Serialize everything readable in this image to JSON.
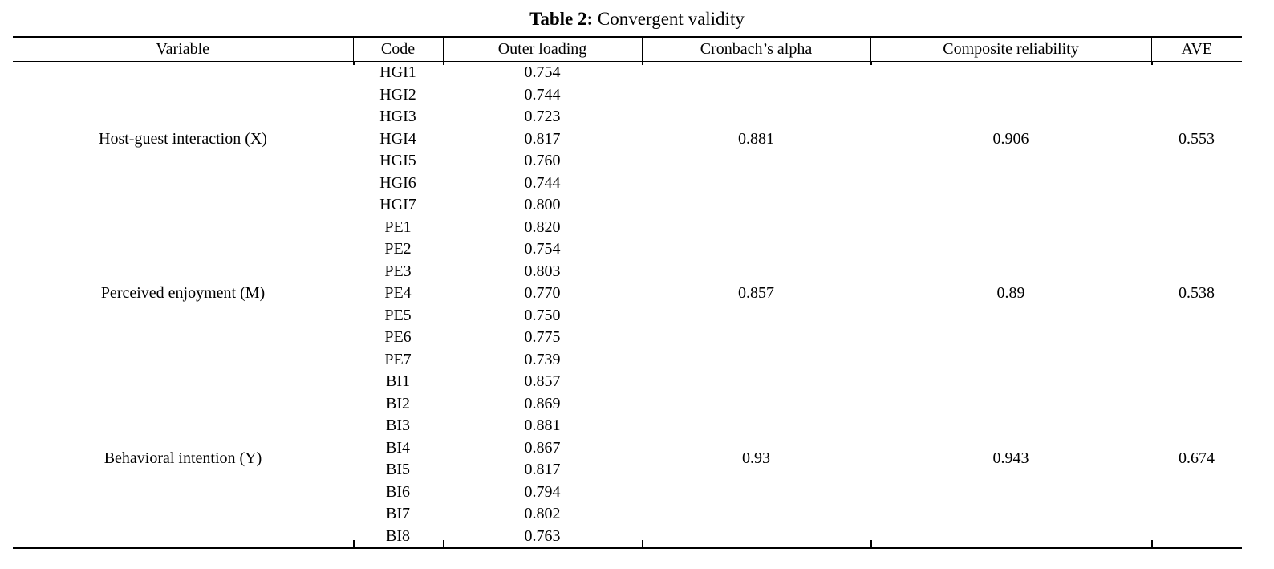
{
  "title": {
    "label": "Table 2:",
    "text": " Convergent validity"
  },
  "colors": {
    "text": "#000000",
    "rule": "#000000",
    "background": "#ffffff"
  },
  "table": {
    "headers": [
      "Variable",
      "Code",
      "Outer loading",
      "Cronbach’s alpha",
      "Composite reliability",
      "AVE"
    ],
    "groups": [
      {
        "variable": "Host-guest interaction (X)",
        "cronbach_alpha": "0.881",
        "composite_reliability": "0.906",
        "ave": "0.553",
        "items": [
          {
            "code": "HGI1",
            "loading": "0.754"
          },
          {
            "code": "HGI2",
            "loading": "0.744"
          },
          {
            "code": "HGI3",
            "loading": "0.723"
          },
          {
            "code": "HGI4",
            "loading": "0.817"
          },
          {
            "code": "HGI5",
            "loading": "0.760"
          },
          {
            "code": "HGI6",
            "loading": "0.744"
          },
          {
            "code": "HGI7",
            "loading": "0.800"
          }
        ]
      },
      {
        "variable": "Perceived enjoyment (M)",
        "cronbach_alpha": "0.857",
        "composite_reliability": "0.89",
        "ave": "0.538",
        "items": [
          {
            "code": "PE1",
            "loading": "0.820"
          },
          {
            "code": "PE2",
            "loading": "0.754"
          },
          {
            "code": "PE3",
            "loading": "0.803"
          },
          {
            "code": "PE4",
            "loading": "0.770"
          },
          {
            "code": "PE5",
            "loading": "0.750"
          },
          {
            "code": "PE6",
            "loading": "0.775"
          },
          {
            "code": "PE7",
            "loading": "0.739"
          }
        ]
      },
      {
        "variable": "Behavioral intention (Y)",
        "cronbach_alpha": "0.93",
        "composite_reliability": "0.943",
        "ave": "0.674",
        "items": [
          {
            "code": "BI1",
            "loading": "0.857"
          },
          {
            "code": "BI2",
            "loading": "0.869"
          },
          {
            "code": "BI3",
            "loading": "0.881"
          },
          {
            "code": "BI4",
            "loading": "0.867"
          },
          {
            "code": "BI5",
            "loading": "0.817"
          },
          {
            "code": "BI6",
            "loading": "0.794"
          },
          {
            "code": "BI7",
            "loading": "0.802"
          },
          {
            "code": "BI8",
            "loading": "0.763"
          }
        ]
      }
    ]
  }
}
